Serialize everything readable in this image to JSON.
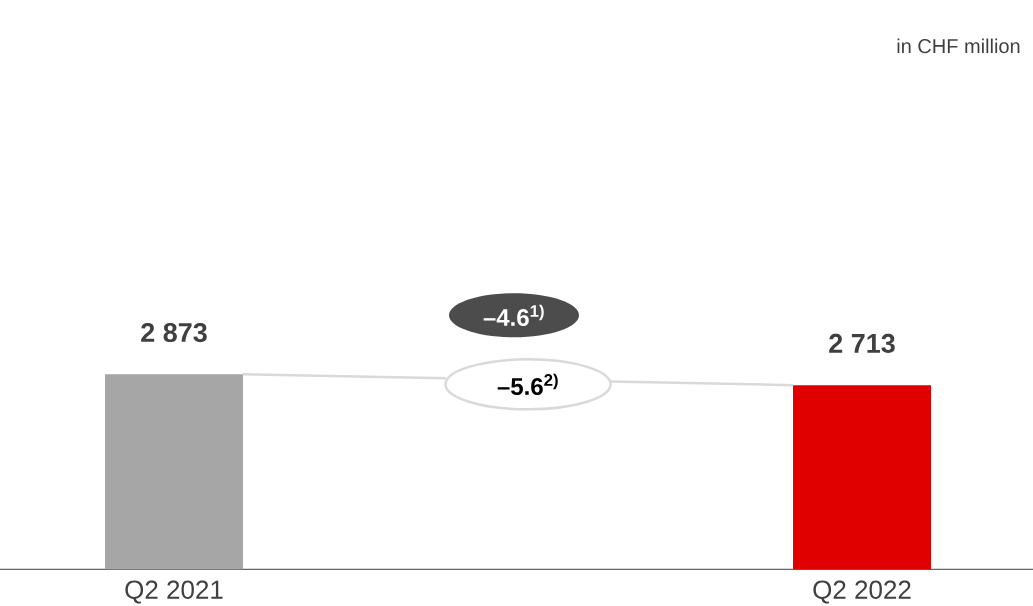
{
  "chart_data": {
    "type": "bar",
    "categories": [
      "Q2 2021",
      "Q2 2022"
    ],
    "values": [
      2873,
      2713
    ],
    "colors": [
      "#a6a6a6",
      "#e00000"
    ],
    "value_labels": [
      "2 873",
      "2 713"
    ],
    "annotations": [
      "in CHF million",
      "–4.6$^{1)}$",
      "–5.6$^{2)}$"
    ]
  }
}
